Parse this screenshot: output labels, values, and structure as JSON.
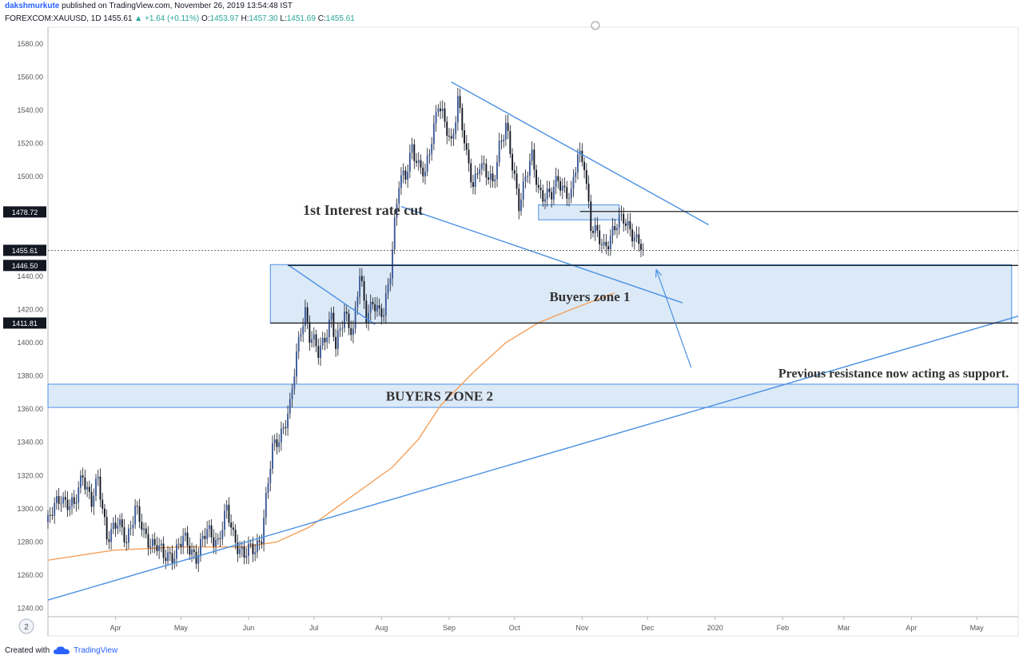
{
  "header": {
    "author": "dakshmurkute",
    "published_text": "published on TradingView.com, November 26, 2019 13:54:48 IST",
    "symbol": "FOREXCOM:XAUUSD, 1D",
    "last": "1455.61",
    "change": "+1.64 (+0.11%)",
    "open_label": "O:",
    "open": "1453.97",
    "high_label": "H:",
    "high": "1457.30",
    "low_label": "L:",
    "low": "1451.69",
    "close_label": "C:",
    "close": "1455.61"
  },
  "footer": {
    "created_with": "Created with",
    "brand": "TradingView"
  },
  "time_scale_icon": "2",
  "colors": {
    "trendline": "#4a90e2",
    "zone_fill": "#d6e6f7",
    "zone_stroke": "#4a90e2",
    "ma": "#f5a05a",
    "candle": "#131722",
    "axis_text": "#555555"
  },
  "chart_data": {
    "type": "candlestick",
    "title": "",
    "ylim": [
      1235,
      1590
    ],
    "y_ticks": [
      "1580.00",
      "1560.00",
      "1540.00",
      "1520.00",
      "1500.00",
      "1440.00",
      "1420.00",
      "1400.00",
      "1380.00",
      "1360.00",
      "1340.00",
      "1320.00",
      "1300.00",
      "1280.00",
      "1260.00",
      "1240.00"
    ],
    "x_ticks": [
      "Apr",
      "May",
      "Jun",
      "Jul",
      "Aug",
      "Sep",
      "Oct",
      "Nov",
      "Dec",
      "2020",
      "Feb",
      "Mar",
      "Apr",
      "May"
    ],
    "x_tick_days": [
      91,
      121,
      152,
      182,
      213,
      244,
      274,
      305,
      335,
      366,
      397,
      425,
      456,
      486
    ],
    "x_range_days": [
      60,
      505
    ],
    "price_labels": [
      {
        "value": 1478.72,
        "text": "1478.72"
      },
      {
        "value": 1455.61,
        "text": "1455.61"
      },
      {
        "value": 1446.5,
        "text": "1446.50"
      },
      {
        "value": 1411.81,
        "text": "1411.81"
      }
    ],
    "anchors": [
      {
        "day": 60,
        "price": 1292
      },
      {
        "day": 66,
        "price": 1308
      },
      {
        "day": 72,
        "price": 1300
      },
      {
        "day": 76,
        "price": 1322
      },
      {
        "day": 80,
        "price": 1304
      },
      {
        "day": 83,
        "price": 1316
      },
      {
        "day": 87,
        "price": 1285
      },
      {
        "day": 92,
        "price": 1290
      },
      {
        "day": 96,
        "price": 1282
      },
      {
        "day": 100,
        "price": 1300
      },
      {
        "day": 104,
        "price": 1284
      },
      {
        "day": 110,
        "price": 1278
      },
      {
        "day": 113,
        "price": 1270
      },
      {
        "day": 118,
        "price": 1274
      },
      {
        "day": 122,
        "price": 1281
      },
      {
        "day": 128,
        "price": 1272
      },
      {
        "day": 133,
        "price": 1286
      },
      {
        "day": 138,
        "price": 1281
      },
      {
        "day": 142,
        "price": 1298
      },
      {
        "day": 145,
        "price": 1284
      },
      {
        "day": 150,
        "price": 1272
      },
      {
        "day": 155,
        "price": 1276
      },
      {
        "day": 158,
        "price": 1285
      },
      {
        "day": 163,
        "price": 1335
      },
      {
        "day": 168,
        "price": 1350
      },
      {
        "day": 171,
        "price": 1360
      },
      {
        "day": 174,
        "price": 1392
      },
      {
        "day": 176,
        "price": 1410
      },
      {
        "day": 178,
        "price": 1420
      },
      {
        "day": 180,
        "price": 1403
      },
      {
        "day": 184,
        "price": 1394
      },
      {
        "day": 187,
        "price": 1405
      },
      {
        "day": 190,
        "price": 1415
      },
      {
        "day": 192,
        "price": 1395
      },
      {
        "day": 196,
        "price": 1420
      },
      {
        "day": 200,
        "price": 1405
      },
      {
        "day": 203,
        "price": 1440
      },
      {
        "day": 206,
        "price": 1418
      },
      {
        "day": 209,
        "price": 1425
      },
      {
        "day": 212,
        "price": 1415
      },
      {
        "day": 214,
        "price": 1418
      },
      {
        "day": 217,
        "price": 1445
      },
      {
        "day": 219,
        "price": 1472
      },
      {
        "day": 221,
        "price": 1495
      },
      {
        "day": 224,
        "price": 1500
      },
      {
        "day": 227,
        "price": 1520
      },
      {
        "day": 230,
        "price": 1505
      },
      {
        "day": 233,
        "price": 1500
      },
      {
        "day": 236,
        "price": 1525
      },
      {
        "day": 239,
        "price": 1545
      },
      {
        "day": 242,
        "price": 1530
      },
      {
        "day": 245,
        "price": 1520
      },
      {
        "day": 248,
        "price": 1548
      },
      {
        "day": 250,
        "price": 1530
      },
      {
        "day": 252,
        "price": 1510
      },
      {
        "day": 255,
        "price": 1495
      },
      {
        "day": 258,
        "price": 1510
      },
      {
        "day": 261,
        "price": 1500
      },
      {
        "day": 264,
        "price": 1495
      },
      {
        "day": 267,
        "price": 1520
      },
      {
        "day": 270,
        "price": 1530
      },
      {
        "day": 273,
        "price": 1505
      },
      {
        "day": 276,
        "price": 1485
      },
      {
        "day": 279,
        "price": 1500
      },
      {
        "day": 282,
        "price": 1510
      },
      {
        "day": 285,
        "price": 1492
      },
      {
        "day": 288,
        "price": 1490
      },
      {
        "day": 291,
        "price": 1488
      },
      {
        "day": 294,
        "price": 1498
      },
      {
        "day": 297,
        "price": 1493
      },
      {
        "day": 300,
        "price": 1488
      },
      {
        "day": 303,
        "price": 1512
      },
      {
        "day": 306,
        "price": 1510
      },
      {
        "day": 309,
        "price": 1470
      },
      {
        "day": 312,
        "price": 1463
      },
      {
        "day": 315,
        "price": 1458
      },
      {
        "day": 318,
        "price": 1465
      },
      {
        "day": 321,
        "price": 1470
      },
      {
        "day": 324,
        "price": 1475
      },
      {
        "day": 327,
        "price": 1470
      },
      {
        "day": 330,
        "price": 1460
      },
      {
        "day": 333,
        "price": 1455.61
      }
    ],
    "ma_points": [
      {
        "day": 60,
        "price": 1269
      },
      {
        "day": 90,
        "price": 1275
      },
      {
        "day": 120,
        "price": 1277
      },
      {
        "day": 150,
        "price": 1277
      },
      {
        "day": 165,
        "price": 1280
      },
      {
        "day": 180,
        "price": 1289
      },
      {
        "day": 200,
        "price": 1308
      },
      {
        "day": 218,
        "price": 1325
      },
      {
        "day": 230,
        "price": 1342
      },
      {
        "day": 240,
        "price": 1362
      },
      {
        "day": 255,
        "price": 1382
      },
      {
        "day": 270,
        "price": 1400
      },
      {
        "day": 285,
        "price": 1412
      },
      {
        "day": 300,
        "price": 1420
      },
      {
        "day": 320,
        "price": 1430
      }
    ],
    "trendlines": [
      {
        "d1": 60,
        "p1": 1245,
        "d2": 505,
        "p2": 1416
      },
      {
        "d1": 245,
        "p1": 1557,
        "d2": 363,
        "p2": 1471
      },
      {
        "d1": 222,
        "p1": 1482,
        "d2": 351,
        "p2": 1424
      },
      {
        "d1": 170,
        "p1": 1447,
        "d2": 210,
        "p2": 1411
      }
    ],
    "hlines": [
      {
        "d1": 304,
        "d2": 505,
        "p": 1479
      },
      {
        "d1": 170,
        "d2": 505,
        "p": 1446.5
      },
      {
        "d1": 162,
        "d2": 505,
        "p": 1411.8
      }
    ],
    "dotted_line": {
      "d1": 60,
      "d2": 505,
      "p": 1455.61
    },
    "zones": [
      {
        "d1": 162,
        "d2": 502,
        "p_top": 1447,
        "p_bot": 1411.8
      },
      {
        "d1": 60,
        "d2": 505,
        "p_top": 1375,
        "p_bot": 1361
      },
      {
        "d1": 285,
        "d2": 322,
        "p_top": 1483,
        "p_bot": 1474
      }
    ],
    "arrow": {
      "d1": 355,
      "p1": 1385,
      "d2": 339,
      "p2": 1444
    },
    "annotations": [
      {
        "id": "rate-cut",
        "text": "1st Interest rate cut",
        "day": 177,
        "price": 1477,
        "size": 18
      },
      {
        "id": "buyers-zone-1",
        "text": "Buyers zone 1",
        "day": 290,
        "price": 1425,
        "size": 17
      },
      {
        "id": "resistance-support",
        "text": "Previous resistance now acting as support.",
        "day": 395,
        "price": 1379,
        "size": 16
      },
      {
        "id": "buyers-zone-2",
        "text": "BUYERS ZONE 2",
        "day": 215,
        "price": 1365,
        "size": 17
      }
    ]
  }
}
